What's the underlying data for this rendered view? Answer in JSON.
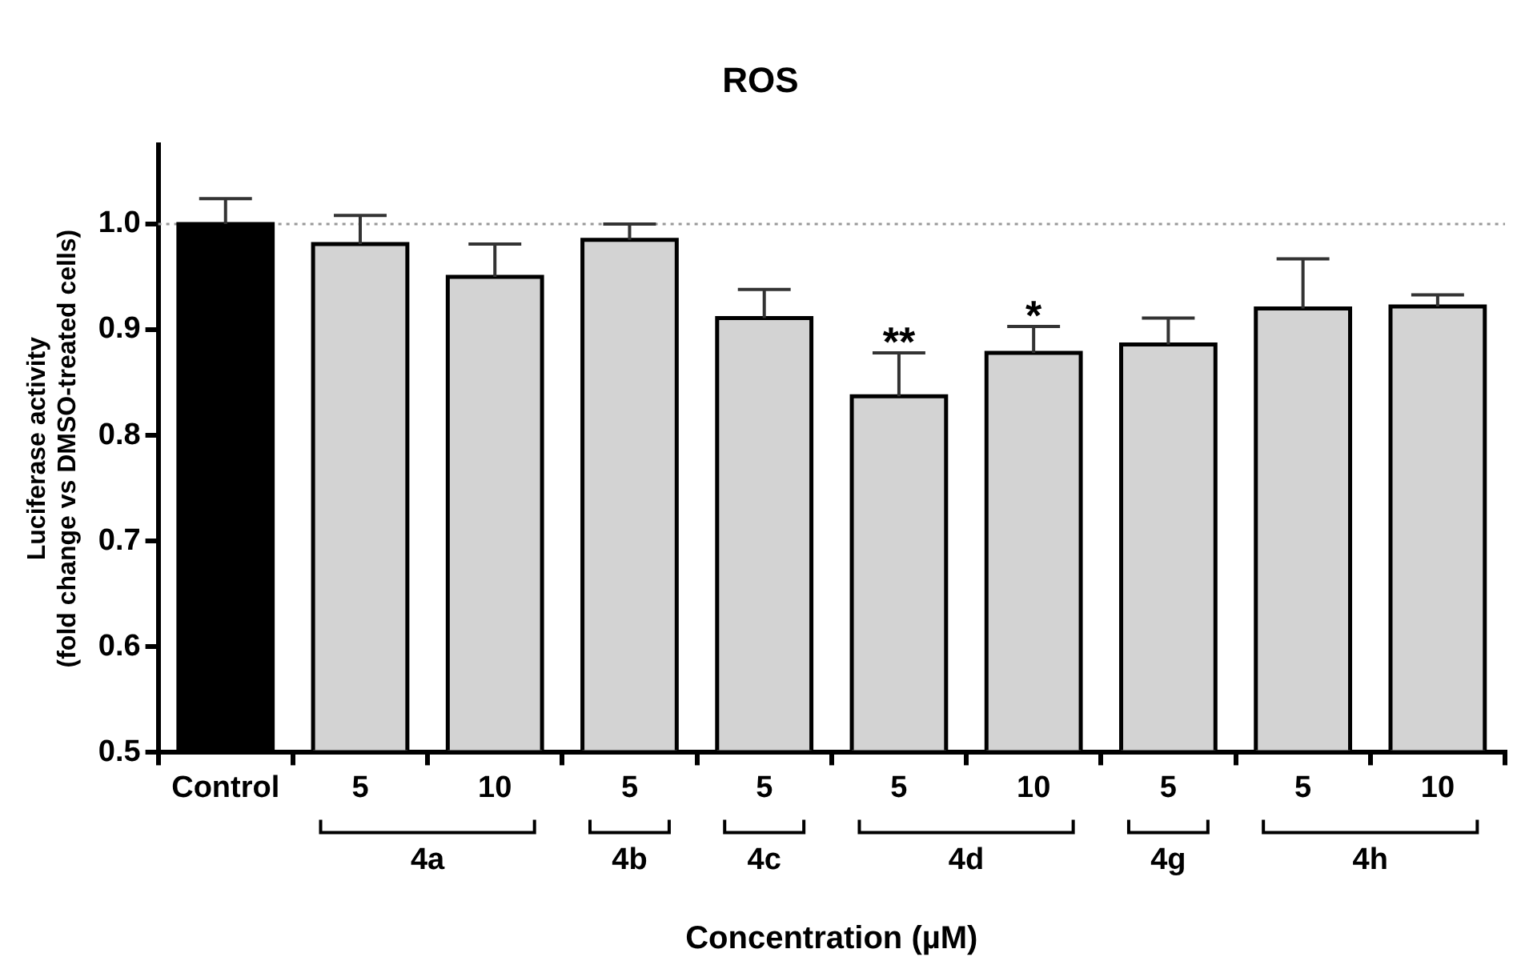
{
  "chart_data": {
    "type": "bar",
    "title": "ROS",
    "xlabel": "Concentration (µM)",
    "ylabel": "Luciferase activity\n(fold change vs DMSO-treated cells)",
    "categories": [
      "Control",
      "5",
      "10",
      "5",
      "5",
      "5",
      "10",
      "5",
      "5",
      "10"
    ],
    "values": [
      1.0,
      0.981,
      0.95,
      0.985,
      0.911,
      0.837,
      0.878,
      0.886,
      0.92,
      0.922
    ],
    "errors": [
      [
        1.0,
        1.024
      ],
      [
        0.981,
        1.008
      ],
      [
        0.95,
        0.981
      ],
      [
        0.985,
        1.0
      ],
      [
        0.911,
        0.938
      ],
      [
        0.837,
        0.878
      ],
      [
        0.878,
        0.903
      ],
      [
        0.886,
        0.911
      ],
      [
        0.92,
        0.967
      ],
      [
        0.922,
        0.933
      ]
    ],
    "colors": [
      "#000000",
      "#d3d3d3",
      "#d3d3d3",
      "#d3d3d3",
      "#d3d3d3",
      "#d3d3d3",
      "#d3d3d3",
      "#d3d3d3",
      "#d3d3d3",
      "#d3d3d3"
    ],
    "ylim": [
      0.5,
      1.075
    ],
    "yticks": [
      0.5,
      0.6,
      0.7,
      0.8,
      0.9,
      {
        "value": 1.0,
        "label": "1.0"
      }
    ],
    "ref_lines": [
      {
        "axis": "y",
        "value": 1.0,
        "color": "#999999",
        "line_style": "dotted"
      }
    ],
    "annotations": [
      "4a",
      "4b",
      "4c",
      "4d",
      "4g",
      "4h",
      {
        "text": "**",
        "y": 0.878
      },
      {
        "text": "*",
        "y": 0.903
      }
    ],
    "grid": false,
    "legend": false
  }
}
